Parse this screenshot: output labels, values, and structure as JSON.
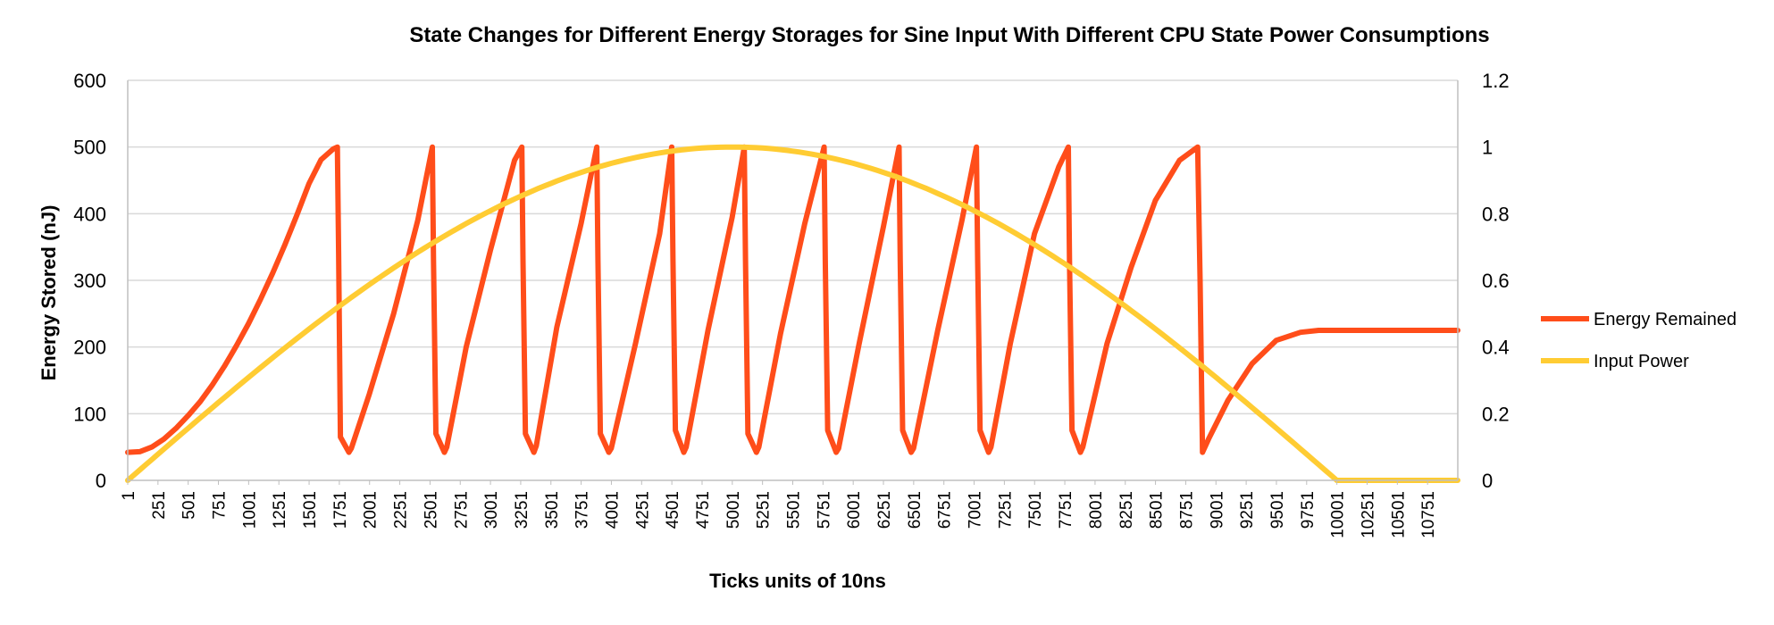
{
  "chart_data": {
    "type": "line",
    "title": "State Changes for Different Energy Storages for Sine Input With Different CPU State Power Consumptions",
    "xlabel": "Ticks units of 10ns",
    "ylabel": "Energy Stored (nJ)",
    "y2label": "",
    "ylim": [
      0,
      600
    ],
    "y2lim": [
      0,
      1.2
    ],
    "yticks": [
      "0",
      "100",
      "200",
      "300",
      "400",
      "500",
      "600"
    ],
    "y2ticks": [
      "0",
      "0.2",
      "0.4",
      "0.6",
      "0.8",
      "1",
      "1.2"
    ],
    "xlim": [
      1,
      11001
    ],
    "xticks": [
      "1",
      "251",
      "501",
      "751",
      "1001",
      "1251",
      "1501",
      "1751",
      "2001",
      "2251",
      "2501",
      "2751",
      "3001",
      "3251",
      "3501",
      "3751",
      "4001",
      "4251",
      "4501",
      "4751",
      "5001",
      "5251",
      "5501",
      "5751",
      "6001",
      "6251",
      "6501",
      "6751",
      "7001",
      "7251",
      "7501",
      "7751",
      "8001",
      "8251",
      "8501",
      "8751",
      "9001",
      "9251",
      "9501",
      "9751",
      "10001",
      "10251",
      "10501",
      "10751"
    ],
    "grid": "horizontal",
    "legend_position": "right",
    "series": [
      {
        "name": "Energy Remained",
        "axis": "left",
        "color": "#ff4d1a",
        "x": [
          1,
          100,
          200,
          300,
          400,
          500,
          600,
          700,
          800,
          900,
          1000,
          1100,
          1200,
          1300,
          1400,
          1500,
          1600,
          1700,
          1735,
          1745,
          1760,
          1830,
          1850,
          2000,
          2200,
          2400,
          2520,
          2530,
          2550,
          2620,
          2640,
          2800,
          3000,
          3200,
          3260,
          3270,
          3290,
          3360,
          3380,
          3550,
          3750,
          3880,
          3890,
          3910,
          3980,
          4000,
          4200,
          4400,
          4500,
          4510,
          4530,
          4600,
          4620,
          4800,
          5000,
          5100,
          5110,
          5130,
          5200,
          5220,
          5400,
          5600,
          5760,
          5770,
          5790,
          5860,
          5880,
          6050,
          6250,
          6380,
          6390,
          6410,
          6480,
          6500,
          6700,
          6900,
          7020,
          7030,
          7050,
          7120,
          7140,
          7300,
          7500,
          7700,
          7780,
          7790,
          7810,
          7880,
          7900,
          8100,
          8300,
          8500,
          8700,
          8850,
          8870,
          8890,
          8940,
          9100,
          9300,
          9500,
          9700,
          9850,
          10001,
          10500,
          11001
        ],
        "values": [
          42,
          43,
          50,
          62,
          78,
          97,
          118,
          143,
          171,
          202,
          235,
          272,
          311,
          353,
          398,
          445,
          481,
          497,
          500,
          340,
          65,
          42,
          48,
          130,
          250,
          390,
          500,
          330,
          70,
          42,
          50,
          200,
          345,
          480,
          500,
          330,
          70,
          42,
          52,
          230,
          385,
          500,
          330,
          70,
          42,
          48,
          205,
          370,
          500,
          330,
          75,
          42,
          50,
          225,
          395,
          500,
          330,
          70,
          42,
          50,
          220,
          385,
          500,
          330,
          75,
          42,
          48,
          205,
          380,
          500,
          330,
          75,
          42,
          48,
          225,
          390,
          500,
          330,
          75,
          42,
          50,
          205,
          370,
          470,
          500,
          330,
          75,
          42,
          50,
          205,
          320,
          420,
          480,
          500,
          300,
          42,
          62,
          120,
          175,
          210,
          222,
          225,
          225,
          225,
          225
        ]
      },
      {
        "name": "Input Power",
        "axis": "right",
        "color": "#ffcc33",
        "function": "sine",
        "x_start": 1,
        "x_peak": 5001,
        "x_end": 10001,
        "peak": 1.0,
        "after_end": 0
      }
    ]
  }
}
